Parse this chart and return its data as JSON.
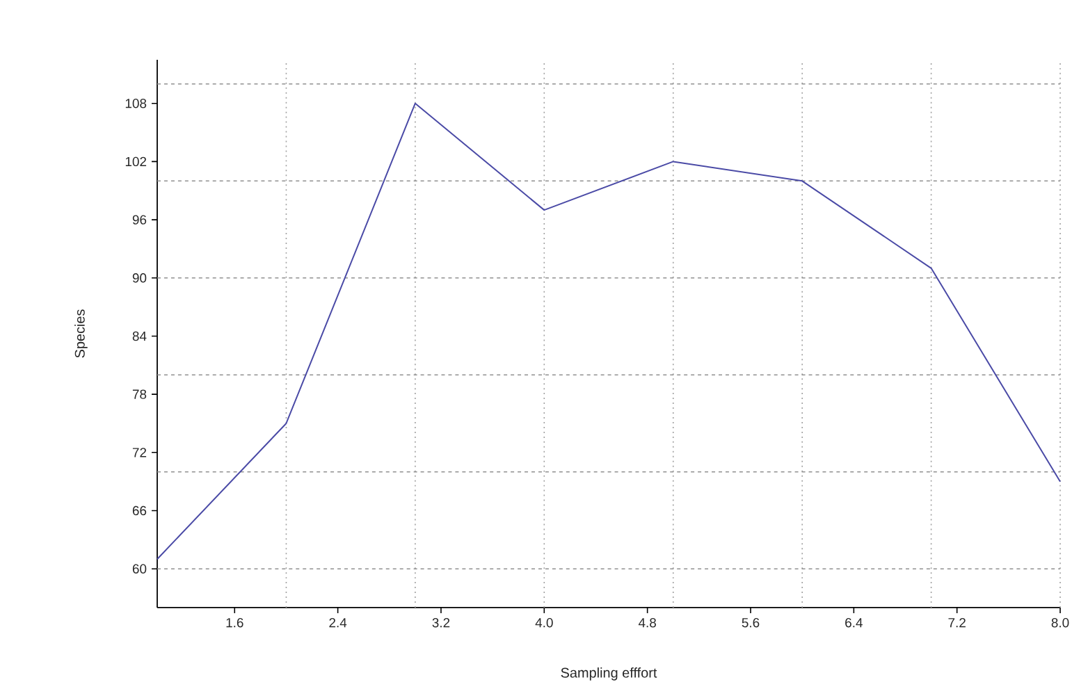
{
  "chart_data": {
    "type": "line",
    "xlabel": "Sampling efffort",
    "ylabel": "Species",
    "x": [
      1,
      2,
      3,
      4,
      5,
      6,
      7,
      8
    ],
    "series": [
      {
        "color": "#4a4aa6",
        "values": [
          61,
          75,
          108,
          97,
          102,
          100,
          91,
          69
        ]
      }
    ],
    "xlim": [
      1,
      8
    ],
    "ylim": [
      56,
      112.5
    ],
    "xticks": [
      {
        "value": 1.6,
        "label": "1.6"
      },
      {
        "value": 2.4,
        "label": "2.4"
      },
      {
        "value": 3.2,
        "label": "3.2"
      },
      {
        "value": 4.0,
        "label": "4.0"
      },
      {
        "value": 4.8,
        "label": "4.8"
      },
      {
        "value": 5.6,
        "label": "5.6"
      },
      {
        "value": 6.4,
        "label": "6.4"
      },
      {
        "value": 7.2,
        "label": "7.2"
      },
      {
        "value": 8.0,
        "label": "8.0"
      }
    ],
    "yticks": [
      60,
      66,
      72,
      78,
      84,
      90,
      96,
      102,
      108
    ],
    "ref_lines": [
      {
        "axis": "x",
        "value": 2,
        "color": "#a0a0a0",
        "line_style": "dotted"
      },
      {
        "axis": "x",
        "value": 3,
        "color": "#a0a0a0",
        "line_style": "dotted"
      },
      {
        "axis": "x",
        "value": 4,
        "color": "#a0a0a0",
        "line_style": "dotted"
      },
      {
        "axis": "x",
        "value": 5,
        "color": "#a0a0a0",
        "line_style": "dotted"
      },
      {
        "axis": "x",
        "value": 6,
        "color": "#a0a0a0",
        "line_style": "dotted"
      },
      {
        "axis": "x",
        "value": 7,
        "color": "#a0a0a0",
        "line_style": "dotted"
      },
      {
        "axis": "x",
        "value": 8,
        "color": "#a0a0a0",
        "line_style": "dotted"
      },
      {
        "axis": "y",
        "value": 60,
        "color": "#909090",
        "line_style": "dashed"
      },
      {
        "axis": "y",
        "value": 70,
        "color": "#909090",
        "line_style": "dashed"
      },
      {
        "axis": "y",
        "value": 80,
        "color": "#909090",
        "line_style": "dashed"
      },
      {
        "axis": "y",
        "value": 90,
        "color": "#909090",
        "line_style": "dashed"
      },
      {
        "axis": "y",
        "value": 100,
        "color": "#909090",
        "line_style": "dashed"
      },
      {
        "axis": "y",
        "value": 110,
        "color": "#909090",
        "line_style": "dashed"
      }
    ],
    "grid": false,
    "marker": "none",
    "line_style": "solid"
  }
}
